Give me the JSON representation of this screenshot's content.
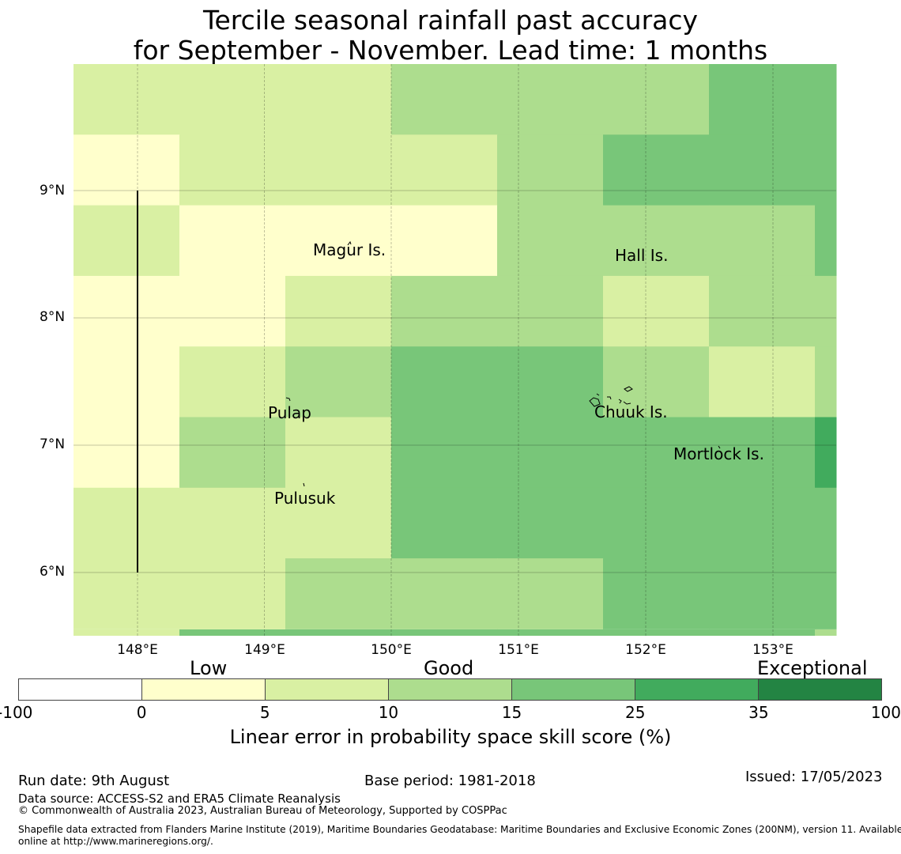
{
  "title": {
    "line1": "Tercile seasonal rainfall past accuracy",
    "line2": "for September - November. Lead time: 1 months"
  },
  "map": {
    "y_axis_labels": [
      "9°N",
      "8°N",
      "7°N",
      "6°N"
    ],
    "x_axis_labels": [
      "148°E",
      "149°E",
      "150°E",
      "151°E",
      "152°E",
      "153°E"
    ],
    "places": [
      "Magur Is.",
      "Hall Is.",
      "Pulap",
      "Chuuk Is.",
      "Mortlock Is.",
      "Pulusuk"
    ],
    "grid_levels": [
      [
        2,
        2,
        2,
        3,
        3,
        3,
        4,
        4
      ],
      [
        1,
        2,
        2,
        2,
        3,
        4,
        4,
        4
      ],
      [
        2,
        1,
        1,
        1,
        3,
        3,
        3,
        4
      ],
      [
        1,
        1,
        2,
        3,
        3,
        2,
        3,
        3
      ],
      [
        1,
        2,
        3,
        4,
        4,
        3,
        2,
        3
      ],
      [
        1,
        3,
        2,
        4,
        4,
        4,
        4,
        5
      ],
      [
        2,
        2,
        2,
        4,
        4,
        4,
        4,
        4
      ],
      [
        2,
        2,
        3,
        3,
        3,
        4,
        4,
        4
      ]
    ],
    "bottom_strip_levels": [
      2,
      4,
      4,
      4,
      4,
      4,
      4,
      3
    ]
  },
  "legend": {
    "categories": [
      "Low",
      "Good",
      "Exceptional"
    ],
    "ticks": [
      "-100",
      "0",
      "5",
      "10",
      "15",
      "25",
      "35",
      "100"
    ],
    "colors": [
      "#ffffff",
      "#ffffcc",
      "#d9f0a3",
      "#addd8e",
      "#78c679",
      "#41ab5d",
      "#238443"
    ],
    "label": "Linear error in probability space skill score (%)"
  },
  "footer": {
    "run_date": "Run date: 9th August",
    "base_period": "Base period: 1981-2018",
    "issued": "Issued: 17/05/2023",
    "data_source": "Data source: ACCESS-S2 and ERA5 Climate Reanalysis",
    "copyright": "© Commonwealth of Australia 2023, Australian Bureau of Meteorology, Supported by COSPPac",
    "shapefile_line1": "Shapefile data extracted from Flanders Marine Institute (2019), Maritime Boundaries Geodatabase: Maritime Boundaries and Exclusive Economic Zones (200NM), version 11. Available",
    "shapefile_line2": "online at http://www.marineregions.org/."
  }
}
